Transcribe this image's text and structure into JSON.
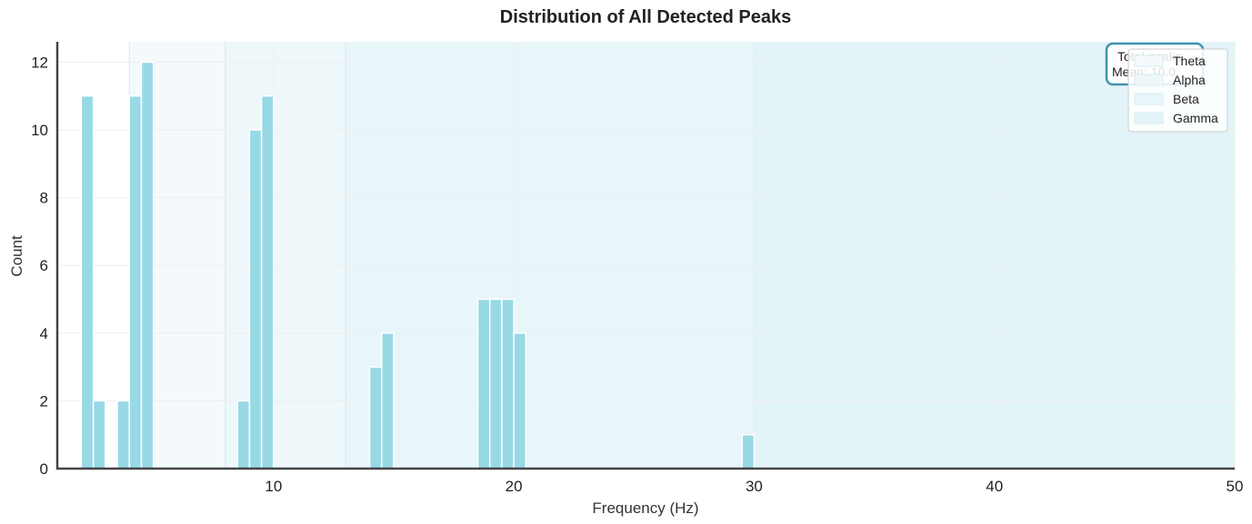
{
  "chart_data": {
    "type": "bar",
    "title": "Distribution of All Detected Peaks",
    "xlabel": "Frequency (Hz)",
    "ylabel": "Count",
    "xlim": [
      1,
      50
    ],
    "ylim": [
      0,
      12.6
    ],
    "bin_width": 0.5,
    "xticks": [
      10,
      20,
      30,
      40,
      50
    ],
    "yticks": [
      0,
      2,
      4,
      6,
      8,
      10,
      12
    ],
    "grid": true,
    "bins": [
      {
        "start": 2.0,
        "count": 11
      },
      {
        "start": 2.5,
        "count": 2
      },
      {
        "start": 3.5,
        "count": 2
      },
      {
        "start": 4.0,
        "count": 11
      },
      {
        "start": 4.5,
        "count": 12
      },
      {
        "start": 8.5,
        "count": 2
      },
      {
        "start": 9.0,
        "count": 10
      },
      {
        "start": 9.5,
        "count": 11
      },
      {
        "start": 14.0,
        "count": 3
      },
      {
        "start": 14.5,
        "count": 4
      },
      {
        "start": 18.5,
        "count": 5
      },
      {
        "start": 19.0,
        "count": 5
      },
      {
        "start": 19.5,
        "count": 5
      },
      {
        "start": 20.0,
        "count": 4
      },
      {
        "start": 29.5,
        "count": 1
      }
    ],
    "bands": [
      {
        "name": "Theta",
        "start": 4,
        "end": 8,
        "color": "#f4fafc"
      },
      {
        "name": "Alpha",
        "start": 8,
        "end": 13,
        "color": "#eef8fb"
      },
      {
        "name": "Beta",
        "start": 13,
        "end": 30,
        "color": "#e8f6fa"
      },
      {
        "name": "Gamma",
        "start": 30,
        "end": 50,
        "color": "#e2f4f8"
      }
    ],
    "legend_position": "top-right",
    "annotation": {
      "lines": [
        "Total peaks",
        "Mean: 10.0"
      ],
      "position": "top-right"
    }
  },
  "colors": {
    "bar": "#98d9e6",
    "bar_edge": "#ffffff",
    "band_edge": "#d5ecf2",
    "spine": "#444444",
    "grid": "#eeeeee",
    "annotation_border": "#4093ad"
  }
}
